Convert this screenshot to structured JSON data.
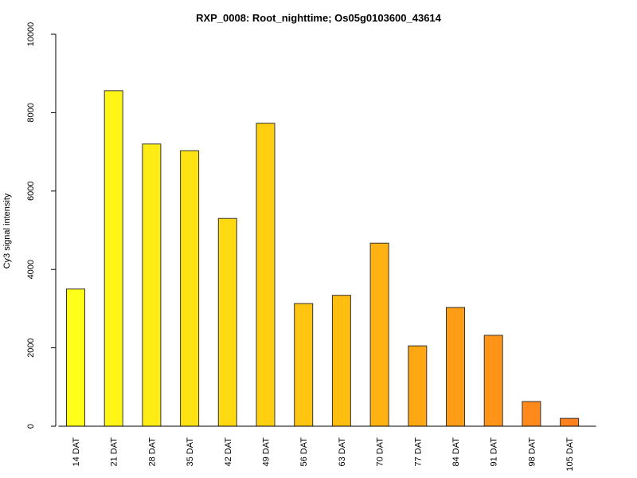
{
  "chart_data": {
    "type": "bar",
    "title": "RXP_0008: Root_nighttime; Os05g0103600_43614",
    "xlabel": "",
    "ylabel": "Cy3 signal intensity",
    "ylim": [
      0,
      10000
    ],
    "yticks": [
      0,
      2000,
      4000,
      6000,
      8000,
      10000
    ],
    "grid": false,
    "categories": [
      "14 DAT",
      "21 DAT",
      "28 DAT",
      "35 DAT",
      "42 DAT",
      "49 DAT",
      "56 DAT",
      "63 DAT",
      "70 DAT",
      "77 DAT",
      "84 DAT",
      "91 DAT",
      "98 DAT",
      "105 DAT"
    ],
    "values": [
      3500,
      8560,
      7200,
      7030,
      5300,
      7730,
      3130,
      3340,
      4670,
      2050,
      3030,
      2320,
      630,
      200
    ],
    "colors": [
      "#FFFF19",
      "#FFF516",
      "#FFEC14",
      "#FFE212",
      "#FFD911",
      "#FFCF10",
      "#FFC510",
      "#FFBC11",
      "#FFB212",
      "#FFA814",
      "#FF9E16",
      "#FF9418",
      "#FF8A1B",
      "#FF801E"
    ]
  }
}
